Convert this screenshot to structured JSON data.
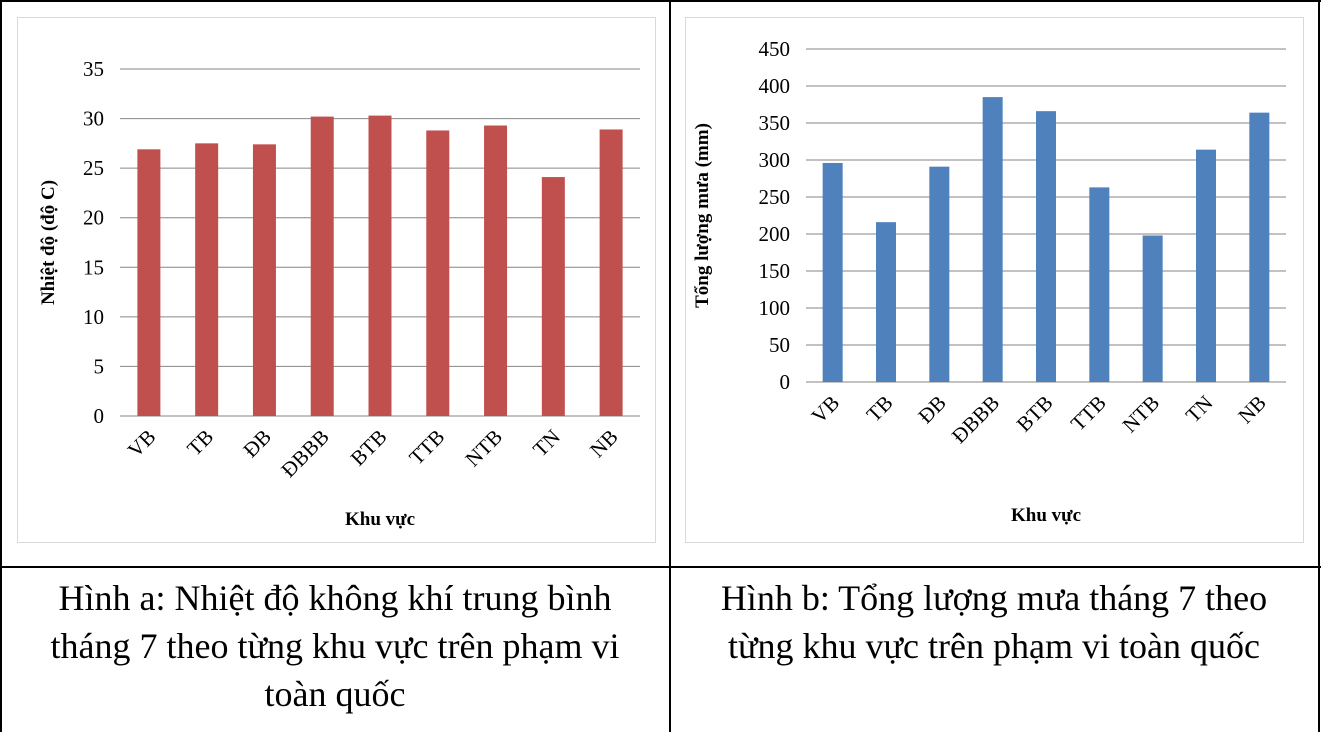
{
  "chart_data": [
    {
      "type": "bar",
      "title": "",
      "xlabel": "Khu vực",
      "ylabel": "Nhiệt độ (độ C)",
      "categories": [
        "VB",
        "TB",
        "ĐB",
        "ĐBBB",
        "BTB",
        "TTB",
        "NTB",
        "TN",
        "NB"
      ],
      "series": [
        {
          "values": [
            26.9,
            27.5,
            27.4,
            30.2,
            30.3,
            28.8,
            29.3,
            24.1,
            28.9
          ]
        }
      ],
      "ylim": [
        0,
        35
      ],
      "yticks": [
        0,
        5,
        10,
        15,
        20,
        25,
        30,
        35
      ],
      "grid": true,
      "legend": "none",
      "color": "#c0504d"
    },
    {
      "type": "bar",
      "title": "",
      "xlabel": "Khu vực",
      "ylabel": "Tổng lượng  mưa (mm)",
      "categories": [
        "VB",
        "TB",
        "ĐB",
        "ĐBBB",
        "BTB",
        "TTB",
        "NTB",
        "TN",
        "NB"
      ],
      "series": [
        {
          "values": [
            296,
            216,
            291,
            385,
            366,
            263,
            198,
            314,
            364
          ]
        }
      ],
      "ylim": [
        0,
        450
      ],
      "yticks": [
        0,
        50,
        100,
        150,
        200,
        250,
        300,
        350,
        400,
        450
      ],
      "grid": true,
      "legend": "none",
      "color": "#4f81bd"
    }
  ],
  "captions": {
    "a": [
      "Hình a: Nhiệt độ không khí trung bình",
      "tháng 7 theo từng khu vực trên phạm vi",
      "toàn quốc"
    ],
    "b": [
      "Hình b: Tổng lượng mưa tháng 7 theo",
      "từng khu vực trên phạm vi toàn quốc"
    ]
  }
}
